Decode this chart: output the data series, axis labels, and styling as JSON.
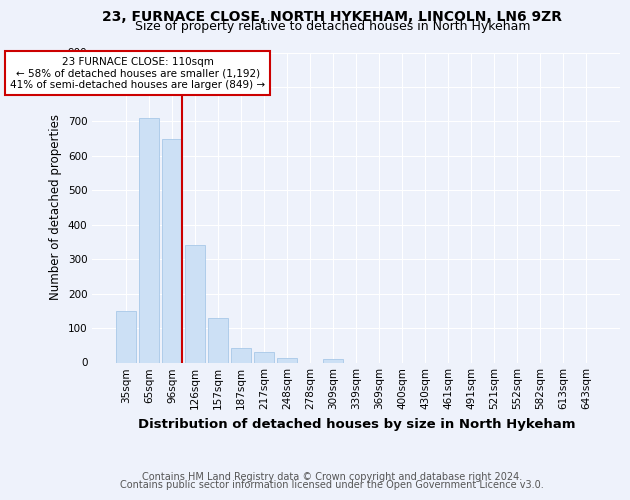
{
  "title1": "23, FURNACE CLOSE, NORTH HYKEHAM, LINCOLN, LN6 9ZR",
  "title2": "Size of property relative to detached houses in North Hykeham",
  "xlabel": "Distribution of detached houses by size in North Hykeham",
  "ylabel": "Number of detached properties",
  "footer1": "Contains HM Land Registry data © Crown copyright and database right 2024.",
  "footer2": "Contains public sector information licensed under the Open Government Licence v3.0.",
  "categories": [
    "35sqm",
    "65sqm",
    "96sqm",
    "126sqm",
    "157sqm",
    "187sqm",
    "217sqm",
    "248sqm",
    "278sqm",
    "309sqm",
    "339sqm",
    "369sqm",
    "400sqm",
    "430sqm",
    "461sqm",
    "491sqm",
    "521sqm",
    "552sqm",
    "582sqm",
    "613sqm",
    "643sqm"
  ],
  "values": [
    150,
    710,
    650,
    340,
    130,
    42,
    30,
    12,
    0,
    10,
    0,
    0,
    0,
    0,
    0,
    0,
    0,
    0,
    0,
    0,
    0
  ],
  "bar_color": "#cce0f5",
  "bar_edge_color": "#a8c8e8",
  "vline_x_index": 2,
  "vline_color": "#cc0000",
  "annotation_line1": "23 FURNACE CLOSE: 110sqm",
  "annotation_line2": "← 58% of detached houses are smaller (1,192)",
  "annotation_line3": "41% of semi-detached houses are larger (849) →",
  "annotation_box_color": "#ffffff",
  "annotation_box_edge": "#cc0000",
  "ylim": [
    0,
    900
  ],
  "yticks": [
    0,
    100,
    200,
    300,
    400,
    500,
    600,
    700,
    800,
    900
  ],
  "bg_color": "#eef2fb",
  "grid_color": "#ffffff",
  "title1_fontsize": 10,
  "title2_fontsize": 9,
  "xlabel_fontsize": 9.5,
  "ylabel_fontsize": 8.5,
  "tick_fontsize": 7.5,
  "annotation_fontsize": 7.5,
  "footer_fontsize": 7
}
